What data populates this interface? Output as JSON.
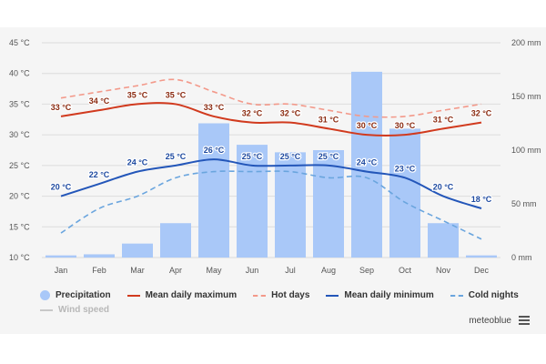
{
  "colors": {
    "precip": "#a9c8f8",
    "max": "#d13a1e",
    "hot": "#f3998a",
    "min": "#2356b9",
    "cold": "#6aa5de",
    "wind": "#c8c8c8",
    "grid": "#dcdcdc",
    "axis_text": "#555555",
    "max_label": "#8a2a10",
    "min_label": "#1e4aa0"
  },
  "legend": {
    "precip": "Precipitation",
    "max": "Mean daily maximum",
    "hot": "Hot days",
    "min": "Mean daily minimum",
    "cold": "Cold nights",
    "wind": "Wind speed"
  },
  "brand": "meteoblue",
  "chart_data": {
    "type": "bar",
    "categories": [
      "Jan",
      "Feb",
      "Mar",
      "Apr",
      "May",
      "Jun",
      "Jul",
      "Aug",
      "Sep",
      "Oct",
      "Nov",
      "Dec"
    ],
    "y_left": {
      "ticks": [
        10,
        15,
        20,
        25,
        30,
        35,
        40,
        45
      ],
      "unit": "°C",
      "range": [
        10,
        45
      ]
    },
    "y_right": {
      "ticks": [
        0,
        50,
        100,
        150,
        200
      ],
      "unit": "mm",
      "range": [
        0,
        200
      ]
    },
    "series": [
      {
        "name": "Precipitation",
        "type": "bar",
        "axis": "right",
        "values": [
          2,
          3,
          13,
          32,
          125,
          105,
          98,
          100,
          173,
          120,
          32,
          2
        ]
      },
      {
        "name": "Mean daily maximum",
        "type": "line",
        "axis": "left",
        "values": [
          33,
          34,
          35,
          35,
          33,
          32,
          32,
          31,
          30,
          30,
          31,
          32
        ],
        "labels": [
          "33 °C",
          "34 °C",
          "35 °C",
          "35 °C",
          "33 °C",
          "32 °C",
          "32 °C",
          "31 °C",
          "30 °C",
          "30 °C",
          "31 °C",
          "32 °C"
        ]
      },
      {
        "name": "Hot days",
        "type": "dashed-line",
        "axis": "left",
        "values": [
          36,
          37,
          38,
          39,
          37,
          35,
          35,
          34,
          33,
          33,
          34,
          35
        ]
      },
      {
        "name": "Mean daily minimum",
        "type": "line",
        "axis": "left",
        "values": [
          20,
          22,
          24,
          25,
          26,
          25,
          25,
          25,
          24,
          23,
          20,
          18
        ],
        "labels": [
          "20 °C",
          "22 °C",
          "24 °C",
          "25 °C",
          "26 °C",
          "25 °C",
          "25 °C",
          "25 °C",
          "24 °C",
          "23 °C",
          "20 °C",
          "18 °C"
        ]
      },
      {
        "name": "Cold nights",
        "type": "dashed-line",
        "axis": "left",
        "values": [
          14,
          18,
          20,
          23,
          24,
          24,
          24,
          23,
          23,
          19,
          16,
          13
        ]
      }
    ]
  }
}
